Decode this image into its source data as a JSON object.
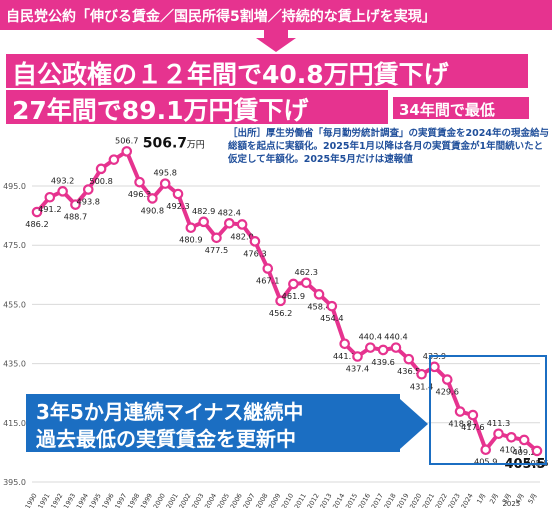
{
  "header": {
    "text": "自民党公約「伸びる賃金／国民所得5割増／持続的な賃上げを実現」"
  },
  "banners": {
    "line1": "自公政権の１２年間で40.8万円賃下げ",
    "line2": "27年間で89.1万円賃下げ",
    "badge": "34年間で最低"
  },
  "source_note": "［出所］厚生労働省「毎月勤労統計調査」の実質賃金を2024年の現金給与総額を起点に実額化。2025年1月以降は各月の実質賃金が1年間続いたと仮定して年額化。2025年5月だけは速報値",
  "callout": {
    "line1": "3年5か月連続マイナス継続中",
    "line2": "過去最低の実質賃金を更新中"
  },
  "colors": {
    "accent": "#e6338f",
    "blue": "#1b6ec2",
    "axis_text": "#555555"
  },
  "chart_data": {
    "type": "line",
    "ylim": [
      395,
      510
    ],
    "yticks": [
      "395.0",
      "415.0",
      "435.0",
      "455.0",
      "475.0",
      "495.0"
    ],
    "x": [
      "1990",
      "1991",
      "1992",
      "1993",
      "1994",
      "1995",
      "1996",
      "1997",
      "1998",
      "1999",
      "2000",
      "2001",
      "2002",
      "2003",
      "2004",
      "2005",
      "2006",
      "2007",
      "2008",
      "2009",
      "2010",
      "2011",
      "2012",
      "2013",
      "2014",
      "2015",
      "2016",
      "2017",
      "2018",
      "2019",
      "2020",
      "2021",
      "2022",
      "2023",
      "2024",
      "1月",
      "2月",
      "3月",
      "4月",
      "5月"
    ],
    "x_group_label": "2025",
    "values": [
      486.2,
      491.2,
      493.2,
      488.7,
      493.8,
      500.8,
      503.9,
      506.7,
      496.3,
      490.8,
      495.8,
      492.3,
      480.9,
      482.9,
      477.5,
      482.4,
      482.0,
      476.3,
      467.1,
      456.2,
      461.9,
      462.3,
      458.4,
      454.4,
      441.7,
      437.4,
      440.4,
      439.6,
      440.4,
      436.5,
      431.4,
      433.9,
      429.6,
      418.8,
      417.6,
      405.9,
      411.3,
      410.1,
      409.2,
      405.5
    ],
    "point_labels": [
      "486.2",
      "491.2",
      "493.2",
      "488.7",
      "493.8",
      "500.8",
      "",
      "506.7",
      "496.3",
      "490.8",
      "495.8",
      "492.3",
      "480.9",
      "482.9",
      "477.5",
      "482.4",
      "482.0",
      "476.3",
      "467.1",
      "456.2",
      "461.9",
      "462.3",
      "458.4",
      "454.4",
      "441.7",
      "437.4",
      "440.4",
      "439.6",
      "440.4",
      "436.5",
      "431.4",
      "433.9",
      "429.6",
      "418.8",
      "417.6",
      "405.9",
      "411.3",
      "410.1",
      "409.2",
      "405.5"
    ],
    "max_label": "506.7",
    "max_unit": "万円"
  }
}
